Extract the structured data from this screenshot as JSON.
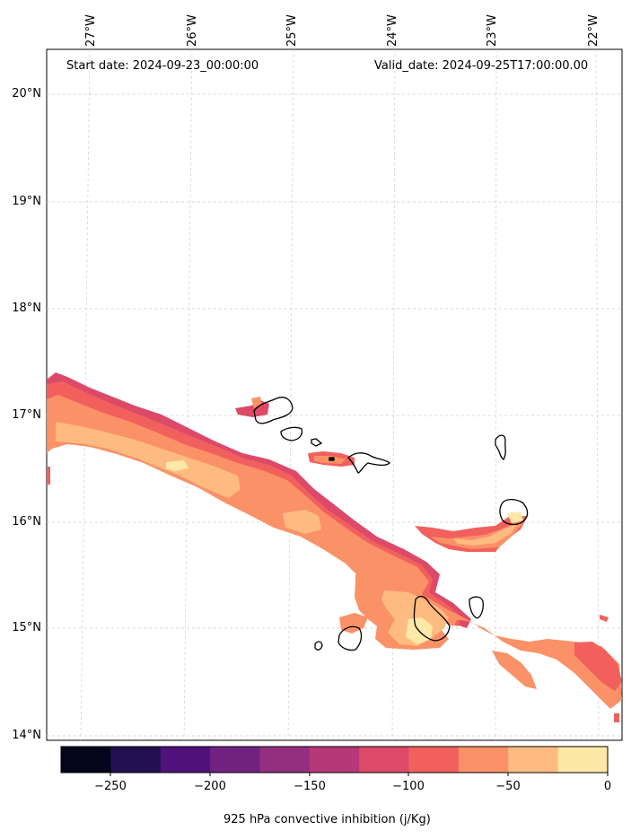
{
  "header": {
    "start_date": "Start date: 2024-09-23_00:00:00",
    "valid_date": "Valid_date: 2024-09-25T17:00:00.00"
  },
  "longitude_labels": [
    "27°W",
    "26°W",
    "25°W",
    "24°W",
    "23°W",
    "22°W"
  ],
  "latitude_labels": [
    "20°N",
    "19°N",
    "18°N",
    "17°N",
    "16°N",
    "15°N",
    "14°N"
  ],
  "colorbar": {
    "label": "925 hPa convective inhibition (j/Kg)",
    "ticks": [
      "−250",
      "−200",
      "−150",
      "−100",
      "−50",
      "0"
    ],
    "colors": [
      "#04051b",
      "#221150",
      "#50127b",
      "#712281",
      "#942f80",
      "#b73879",
      "#dd4969",
      "#f1605d",
      "#fa9167",
      "#febb81",
      "#fde8a7"
    ]
  },
  "legend_colors": {
    "dark_red": "#dd4969",
    "red": "#f1605d",
    "salmon": "#fa9167",
    "peach": "#febb81",
    "pale": "#fde8a7"
  }
}
